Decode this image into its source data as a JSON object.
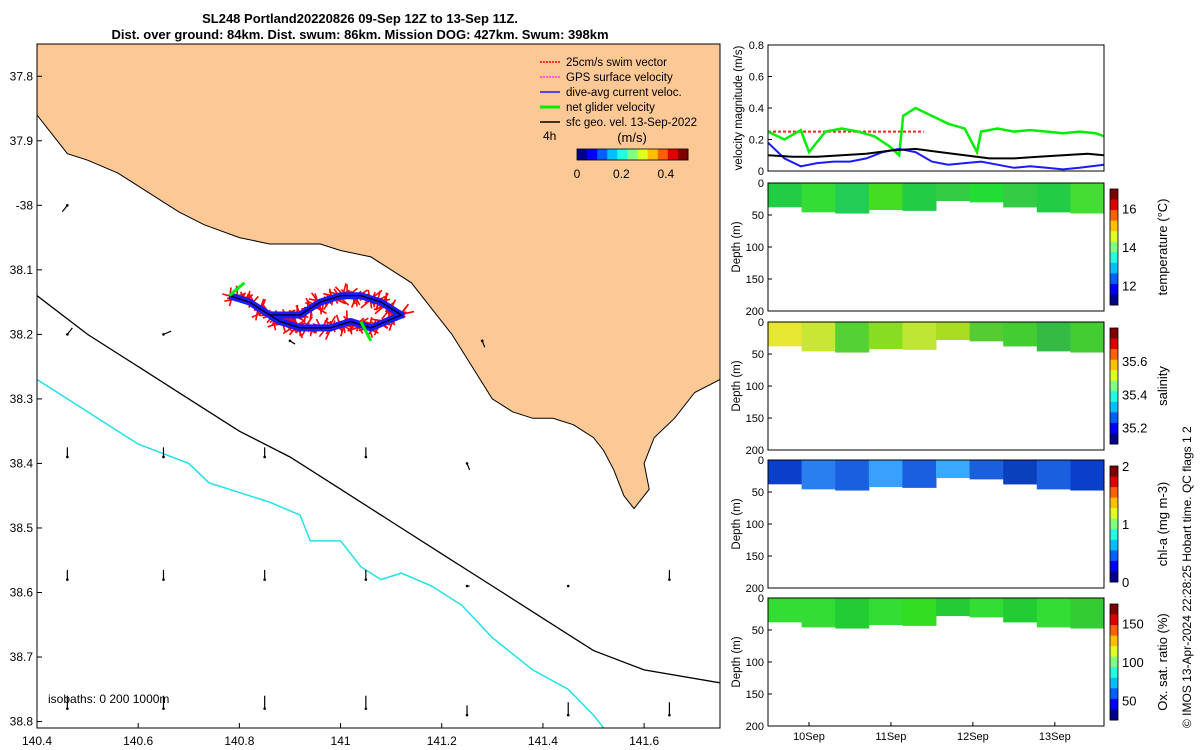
{
  "colors": {
    "land": "#fcc895",
    "track": "#1a1aff",
    "swim": "#ff0000",
    "net": "#00ee00",
    "isobath200": "#000000",
    "isobath1000": "#22e0e8"
  },
  "header": {
    "line1": "SL248 Portland20220826 09-Sep 12Z to 13-Sep 11Z.",
    "line2": "Dist. over ground: 84km. Dist. swum: 86km. Mission DOG: 427km. Swum: 398km"
  },
  "credit": "© IMOS 13-Apr-2024 22:28:25 Hobart time. QC flags 1  2",
  "chart_data": [
    {
      "type": "map",
      "xlim": [
        140.4,
        141.75
      ],
      "ylim": [
        37.75,
        38.81
      ],
      "y_reversed": true,
      "x_ticks": [
        140.4,
        140.6,
        140.8,
        141,
        141.2,
        141.4,
        141.6
      ],
      "x_tick_labels": [
        "140.4",
        "140.6",
        "140.8",
        "141",
        "141.2",
        "141.4",
        "141.6"
      ],
      "y_ticks": [
        37.8,
        37.9,
        38,
        38.1,
        38.2,
        38.3,
        38.4,
        38.5,
        38.6,
        38.7,
        38.8
      ],
      "y_tick_labels": [
        "37.8",
        "37.9",
        "-38",
        "38.1",
        "38.2",
        "38.3",
        "38.4",
        "38.5",
        "38.6",
        "38.7",
        "38.8"
      ],
      "legend": {
        "placement": "top-right",
        "entries": [
          "25cm/s swim vector",
          "GPS surface velocity",
          "dive-avg current veloc.",
          "net glider velocity",
          "sfc geo. vel. 13-Sep-2022"
        ]
      },
      "colorbar": {
        "title": "(m/s)",
        "interval_label": "4h",
        "ticks": [
          0,
          0.2,
          0.4
        ],
        "tick_labels": [
          "0",
          "0.2",
          "0.4"
        ],
        "range": [
          0,
          0.5
        ]
      },
      "isobath_label": "isobaths: 0   200  1000m",
      "coast": [
        [
          140.4,
          37.76
        ],
        [
          140.4,
          37.86
        ],
        [
          140.43,
          37.89
        ],
        [
          140.46,
          37.92
        ],
        [
          140.5,
          37.93
        ],
        [
          140.56,
          37.95
        ],
        [
          140.62,
          37.98
        ],
        [
          140.68,
          38.01
        ],
        [
          140.73,
          38.03
        ],
        [
          140.8,
          38.05
        ],
        [
          140.86,
          38.06
        ],
        [
          140.9,
          38.06
        ],
        [
          140.94,
          38.06
        ],
        [
          140.96,
          38.06
        ],
        [
          141,
          38.07
        ],
        [
          141.06,
          38.08
        ],
        [
          141.1,
          38.1
        ],
        [
          141.14,
          38.12
        ],
        [
          141.18,
          38.16
        ],
        [
          141.22,
          38.2
        ],
        [
          141.26,
          38.25
        ],
        [
          141.3,
          38.3
        ],
        [
          141.34,
          38.32
        ],
        [
          141.38,
          38.33
        ],
        [
          141.42,
          38.33
        ],
        [
          141.46,
          38.34
        ],
        [
          141.5,
          38.36
        ],
        [
          141.52,
          38.38
        ],
        [
          141.54,
          38.41
        ],
        [
          141.56,
          38.45
        ],
        [
          141.58,
          38.47
        ],
        [
          141.61,
          38.44
        ],
        [
          141.6,
          38.4
        ],
        [
          141.62,
          38.36
        ],
        [
          141.66,
          38.33
        ],
        [
          141.7,
          38.29
        ],
        [
          141.75,
          38.27
        ],
        [
          141.75,
          37.75
        ],
        [
          140.4,
          37.75
        ]
      ],
      "isobath200": [
        [
          140.4,
          38.14
        ],
        [
          140.5,
          38.2
        ],
        [
          140.6,
          38.25
        ],
        [
          140.7,
          38.3
        ],
        [
          140.8,
          38.35
        ],
        [
          140.9,
          38.39
        ],
        [
          141,
          38.44
        ],
        [
          141.1,
          38.49
        ],
        [
          141.2,
          38.54
        ],
        [
          141.3,
          38.59
        ],
        [
          141.4,
          38.64
        ],
        [
          141.5,
          38.69
        ],
        [
          141.6,
          38.72
        ],
        [
          141.75,
          38.74
        ]
      ],
      "isobath1000": [
        [
          140.4,
          38.27
        ],
        [
          140.5,
          38.32
        ],
        [
          140.6,
          38.37
        ],
        [
          140.7,
          38.4
        ],
        [
          140.74,
          38.43
        ],
        [
          140.86,
          38.46
        ],
        [
          140.92,
          38.48
        ],
        [
          140.94,
          38.52
        ],
        [
          141,
          38.52
        ],
        [
          141.04,
          38.56
        ],
        [
          141.08,
          38.58
        ],
        [
          141.12,
          38.57
        ],
        [
          141.18,
          38.59
        ],
        [
          141.24,
          38.62
        ],
        [
          141.3,
          38.67
        ],
        [
          141.38,
          38.72
        ],
        [
          141.45,
          38.75
        ],
        [
          141.5,
          38.79
        ],
        [
          141.52,
          38.81
        ]
      ],
      "track": [
        [
          140.86,
          38.17
        ],
        [
          140.92,
          38.17
        ],
        [
          140.96,
          38.15
        ],
        [
          141.0,
          38.14
        ],
        [
          141.04,
          38.14
        ],
        [
          141.08,
          38.15
        ],
        [
          141.12,
          38.17
        ],
        [
          141.06,
          38.19
        ],
        [
          141.02,
          38.18
        ],
        [
          140.98,
          38.19
        ],
        [
          140.92,
          38.19
        ],
        [
          140.88,
          38.18
        ],
        [
          140.82,
          38.15
        ],
        [
          140.78,
          38.14
        ]
      ],
      "net_vectors": [
        [
          140.78,
          38.14,
          140.81,
          38.12
        ],
        [
          141.04,
          38.18,
          141.06,
          38.21
        ]
      ],
      "geo_arrows": [
        [
          140.46,
          38.0,
          -0.01,
          0.01
        ],
        [
          140.46,
          38.2,
          0.01,
          -0.01
        ],
        [
          140.65,
          38.2,
          0.015,
          -0.005
        ],
        [
          140.9,
          38.21,
          0.01,
          0.005
        ],
        [
          141.28,
          38.21,
          0.005,
          0.01
        ],
        [
          140.46,
          38.39,
          0.0,
          -0.015
        ],
        [
          140.65,
          38.39,
          0.0,
          -0.015
        ],
        [
          140.85,
          38.39,
          0.0,
          -0.015
        ],
        [
          141.05,
          38.39,
          0.0,
          -0.015
        ],
        [
          141.25,
          38.4,
          0.005,
          0.01
        ],
        [
          140.46,
          38.58,
          0.0,
          -0.015
        ],
        [
          140.65,
          38.58,
          0.0,
          -0.015
        ],
        [
          140.85,
          38.58,
          0.0,
          -0.015
        ],
        [
          141.05,
          38.58,
          0.0,
          -0.015
        ],
        [
          141.25,
          38.59,
          0.005,
          0.0
        ],
        [
          141.45,
          38.59,
          0.0,
          0.0
        ],
        [
          141.65,
          38.58,
          0.0,
          -0.015
        ],
        [
          140.46,
          38.78,
          0.0,
          -0.02
        ],
        [
          140.65,
          38.78,
          0.0,
          -0.02
        ],
        [
          140.85,
          38.78,
          0.0,
          -0.02
        ],
        [
          141.05,
          38.78,
          0.0,
          -0.02
        ],
        [
          141.25,
          38.79,
          0.0,
          -0.015
        ],
        [
          141.45,
          38.79,
          0.0,
          -0.02
        ],
        [
          141.65,
          38.79,
          0.0,
          -0.02
        ]
      ]
    },
    {
      "type": "line",
      "ylabel": "velocity magnitude (m/s)",
      "ylim": [
        0,
        0.8
      ],
      "y_ticks": [
        0,
        0.2,
        0.4,
        0.6,
        0.8
      ],
      "y_tick_labels": [
        "0",
        "0.2",
        "0.4",
        "0.6",
        "0.8"
      ],
      "x_unit": "day of September 2022",
      "xlim": [
        9.5,
        13.6
      ],
      "series": [
        {
          "color": "#ff2020",
          "dashed": true,
          "x": [
            9.5,
            11.4
          ],
          "y": [
            0.25,
            0.25
          ]
        },
        {
          "color": "#00ee00",
          "x": [
            9.5,
            9.7,
            9.9,
            10.0,
            10.2,
            10.4,
            10.6,
            10.8,
            11.0,
            11.1,
            11.15,
            11.3,
            11.5,
            11.7,
            11.9,
            12.05,
            12.1,
            12.3,
            12.5,
            12.7,
            12.9,
            13.1,
            13.3,
            13.5,
            13.6
          ],
          "y": [
            0.25,
            0.2,
            0.26,
            0.12,
            0.25,
            0.27,
            0.25,
            0.22,
            0.15,
            0.1,
            0.35,
            0.4,
            0.35,
            0.3,
            0.27,
            0.12,
            0.25,
            0.27,
            0.25,
            0.26,
            0.25,
            0.24,
            0.25,
            0.24,
            0.22
          ]
        },
        {
          "color": "#1a1aff",
          "x": [
            9.5,
            9.7,
            9.9,
            10.1,
            10.3,
            10.5,
            10.7,
            10.9,
            11.1,
            11.3,
            11.5,
            11.7,
            11.9,
            12.1,
            12.3,
            12.5,
            12.7,
            12.9,
            13.1,
            13.3,
            13.6
          ],
          "y": [
            0.18,
            0.08,
            0.03,
            0.05,
            0.06,
            0.06,
            0.08,
            0.12,
            0.14,
            0.12,
            0.06,
            0.04,
            0.05,
            0.06,
            0.04,
            0.02,
            0.03,
            0.02,
            0.01,
            0.02,
            0.04
          ]
        },
        {
          "color": "#000000",
          "x": [
            9.5,
            9.8,
            10.1,
            10.4,
            10.7,
            11.0,
            11.3,
            11.6,
            11.9,
            12.2,
            12.5,
            12.8,
            13.1,
            13.4,
            13.6
          ],
          "y": [
            0.1,
            0.09,
            0.09,
            0.1,
            0.11,
            0.13,
            0.14,
            0.12,
            0.1,
            0.08,
            0.08,
            0.09,
            0.1,
            0.11,
            0.1
          ]
        }
      ]
    },
    {
      "type": "heatmap",
      "ylabel": "Depth (m)",
      "clabel": "temperature (°C)",
      "ylim": [
        0,
        200
      ],
      "y_ticks": [
        0,
        50,
        100,
        150,
        200
      ],
      "y_tick_labels": [
        "0",
        "50",
        "100",
        "150",
        "200"
      ],
      "clim": [
        11,
        17
      ],
      "c_ticks": [
        12,
        14,
        16
      ],
      "c_tick_labels": [
        "12",
        "14",
        "16"
      ],
      "colors": [
        "#22cc44",
        "#33dd33",
        "#22cc55",
        "#44dd22",
        "#22cc44",
        "#33cc44",
        "#22dd33",
        "#33cc44",
        "#22cc44",
        "#44dd33"
      ]
    },
    {
      "type": "heatmap",
      "ylabel": "Depth (m)",
      "clabel": "salinity",
      "ylim": [
        0,
        200
      ],
      "y_ticks": [
        0,
        50,
        100,
        150,
        200
      ],
      "y_tick_labels": [
        "0",
        "50",
        "100",
        "150",
        "200"
      ],
      "clim": [
        35.1,
        35.8
      ],
      "c_ticks": [
        35.2,
        35.4,
        35.6
      ],
      "c_tick_labels": [
        "35.2",
        "35.4",
        "35.6"
      ],
      "colors": [
        "#e6e633",
        "#c8e633",
        "#55d233",
        "#88dd22",
        "#bfe633",
        "#aadd22",
        "#55cc33",
        "#44cc33",
        "#33bb44",
        "#44cc33"
      ]
    },
    {
      "type": "heatmap",
      "ylabel": "Depth (m)",
      "clabel": "chl-a (mg m-3)",
      "ylim": [
        0,
        200
      ],
      "y_ticks": [
        0,
        50,
        100,
        150,
        200
      ],
      "y_tick_labels": [
        "0",
        "50",
        "100",
        "150",
        "200"
      ],
      "clim": [
        0,
        2
      ],
      "c_ticks": [
        0,
        1,
        2
      ],
      "c_tick_labels": [
        "0",
        "1",
        "2"
      ],
      "colors": [
        "#0a3fcc",
        "#2a7ff0",
        "#1a5fe0",
        "#3aa0ff",
        "#1a5fe0",
        "#3aa8ff",
        "#1a60dd",
        "#0a40bb",
        "#1a5fe0",
        "#0a3fcc"
      ]
    },
    {
      "type": "heatmap",
      "ylabel": "Depth (m)",
      "clabel": "Ox. sat. ratio (%)",
      "ylim": [
        0,
        200
      ],
      "y_ticks": [
        0,
        50,
        100,
        150,
        200
      ],
      "y_tick_labels": [
        "0",
        "50",
        "100",
        "150",
        "200"
      ],
      "clim": [
        25,
        175
      ],
      "c_ticks": [
        50,
        100,
        150
      ],
      "c_tick_labels": [
        "50",
        "100",
        "150"
      ],
      "colors": [
        "#33dd33",
        "#33dd33",
        "#22cc33",
        "#33dd33",
        "#33dd22",
        "#22cc33",
        "#33dd33",
        "#22cc33",
        "#33dd33",
        "#33cc33"
      ],
      "x_ticks": [
        10,
        11,
        12,
        13
      ],
      "x_tick_labels": [
        "10Sep",
        "11Sep",
        "12Sep",
        "13Sep"
      ]
    }
  ]
}
